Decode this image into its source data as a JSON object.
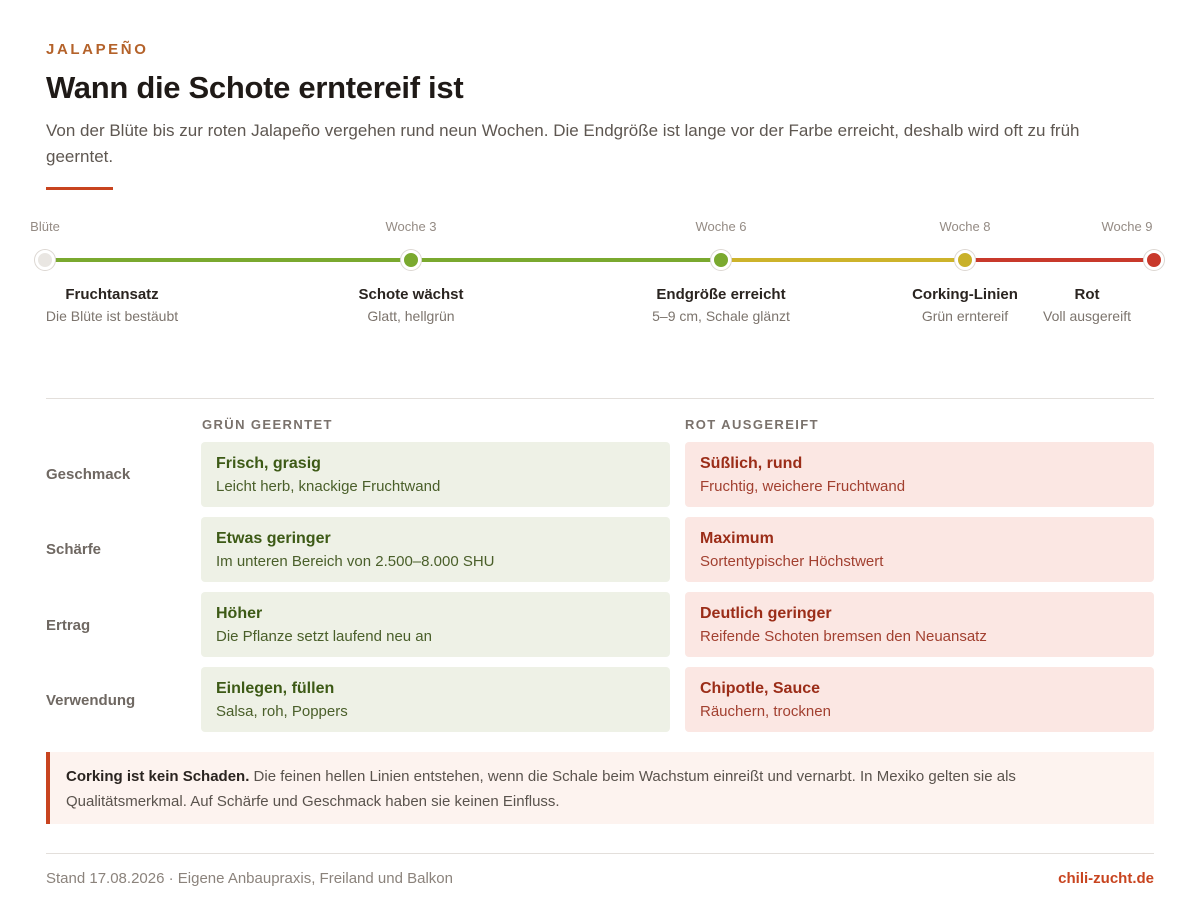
{
  "header": {
    "eyebrow": "JALAPEÑO",
    "title": "Wann die Schote erntereif ist",
    "lead": "Von der Blüte bis zur roten Jalapeño vergehen rund neun Wochen. Die Endgröße ist lange vor der Farbe erreicht, deshalb wird oft zu früh geerntet."
  },
  "timeline": {
    "stages": [
      {
        "week": "Blüte",
        "title": "Fruchtansatz",
        "sub": "Die Blüte ist bestäubt",
        "color": "#e9e6e2"
      },
      {
        "week": "Woche 3",
        "title": "Schote wächst",
        "sub": "Glatt, hellgrün",
        "color": "#7aa92f"
      },
      {
        "week": "Woche 6",
        "title": "Endgröße erreicht",
        "sub": "5–9 cm, Schale glänzt",
        "color": "#7aa92f"
      },
      {
        "week": "Woche 8",
        "title": "Corking-Linien",
        "sub": "Grün erntereif",
        "color": "#c9b12a"
      },
      {
        "week": "Woche 9",
        "title": "Rot",
        "sub": "Voll ausgereift",
        "color": "#c8392b"
      }
    ],
    "segment_colors": [
      "#7aa92f",
      "#7aa92f",
      "#cdb32b",
      "#c8392b"
    ]
  },
  "comparison": {
    "green_heading": "GRÜN GEERNTET",
    "red_heading": "ROT AUSGEREIFT",
    "rows": [
      {
        "label": "Geschmack",
        "green": {
          "title": "Frisch, grasig",
          "sub": "Leicht herb, knackige Fruchtwand"
        },
        "red": {
          "title": "Süßlich, rund",
          "sub": "Fruchtig, weichere Fruchtwand"
        }
      },
      {
        "label": "Schärfe",
        "green": {
          "title": "Etwas geringer",
          "sub": "Im unteren Bereich von 2.500–8.000 SHU"
        },
        "red": {
          "title": "Maximum",
          "sub": "Sortentypischer Höchstwert"
        }
      },
      {
        "label": "Ertrag",
        "green": {
          "title": "Höher",
          "sub": "Die Pflanze setzt laufend neu an"
        },
        "red": {
          "title": "Deutlich geringer",
          "sub": "Reifende Schoten bremsen den Neuansatz"
        }
      },
      {
        "label": "Verwendung",
        "green": {
          "title": "Einlegen, füllen",
          "sub": "Salsa, roh, Poppers"
        },
        "red": {
          "title": "Chipotle, Sauce",
          "sub": "Räuchern, trocknen"
        }
      }
    ]
  },
  "note": {
    "bold": "Corking ist kein Schaden.",
    "text": " Die feinen hellen Linien entstehen, wenn die Schale beim Wachstum einreißt und vernarbt. In Mexiko gelten sie als Qualitätsmerkmal. Auf Schärfe und Geschmack haben sie keinen Einfluss."
  },
  "footer": {
    "left": "Stand 17.08.2026 · Eigene Anbaupraxis, Freiland und Balkon",
    "right": "chili-zucht.de"
  }
}
